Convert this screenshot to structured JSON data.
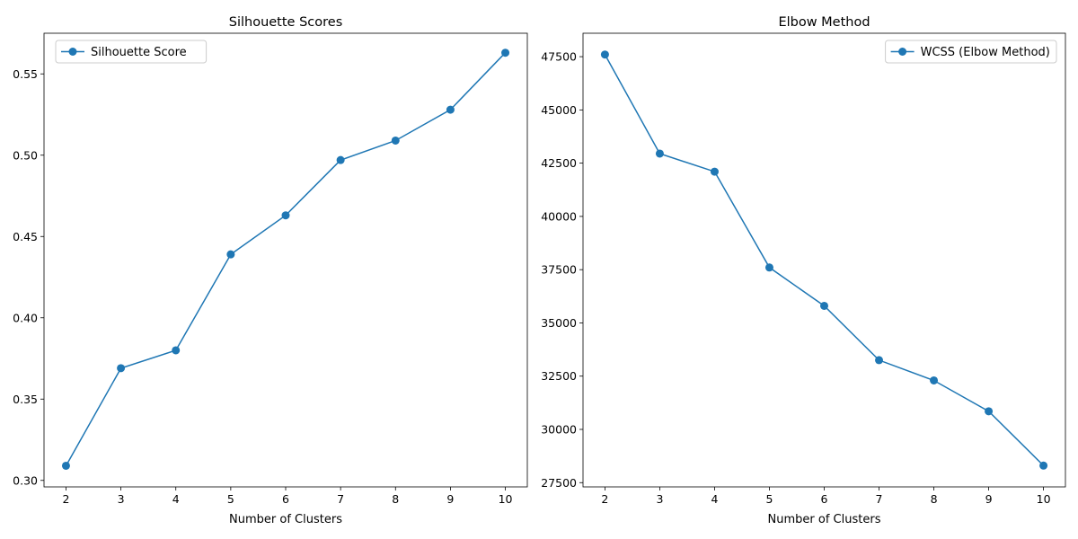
{
  "chart_data": [
    {
      "type": "line",
      "title": "Silhouette Scores",
      "xlabel": "Number of Clusters",
      "ylabel": "",
      "x": [
        2,
        3,
        4,
        5,
        6,
        7,
        8,
        9,
        10
      ],
      "xlim": [
        1.6,
        10.4
      ],
      "ylim": [
        0.296,
        0.575
      ],
      "yticks": [
        0.3,
        0.35,
        0.4,
        0.45,
        0.5,
        0.55
      ],
      "ytick_labels": [
        "0.30",
        "0.35",
        "0.40",
        "0.45",
        "0.50",
        "0.55"
      ],
      "grid": false,
      "legend_position": "upper-left",
      "series": [
        {
          "name": "Silhouette Score",
          "color": "#1f77b4",
          "marker": "circle",
          "values": [
            0.309,
            0.369,
            0.38,
            0.439,
            0.463,
            0.497,
            0.509,
            0.528,
            0.563
          ]
        }
      ]
    },
    {
      "type": "line",
      "title": "Elbow Method",
      "xlabel": "Number of Clusters",
      "ylabel": "",
      "x": [
        2,
        3,
        4,
        5,
        6,
        7,
        8,
        9,
        10
      ],
      "xlim": [
        1.6,
        10.4
      ],
      "ylim": [
        27300,
        48600
      ],
      "yticks": [
        27500,
        30000,
        32500,
        35000,
        37500,
        40000,
        42500,
        45000,
        47500
      ],
      "ytick_labels": [
        "27500",
        "30000",
        "32500",
        "35000",
        "37500",
        "40000",
        "42500",
        "45000",
        "47500"
      ],
      "grid": false,
      "legend_position": "upper-right",
      "series": [
        {
          "name": "WCSS (Elbow Method)",
          "color": "#1f77b4",
          "marker": "circle",
          "values": [
            47600,
            42950,
            42100,
            37600,
            35800,
            33250,
            32300,
            30850,
            28300
          ]
        }
      ]
    }
  ]
}
